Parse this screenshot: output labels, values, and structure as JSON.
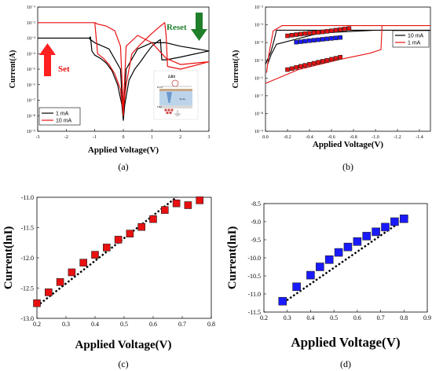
{
  "colors": {
    "black": "#000000",
    "red": "#e81010",
    "blue": "#1a1aff",
    "set_arrow": "#ff2020",
    "reset_arrow": "#1f7f2a"
  },
  "chart_data": [
    {
      "panel": "(a)",
      "type": "line",
      "xlabel": "Applied Voltage(V)",
      "ylabel": "Current(A)",
      "xlim": [
        -3,
        3
      ],
      "ylim": [
        1e-09,
        0.1
      ],
      "yscale": "log",
      "x_ticks": [
        "-3",
        "-2",
        "-1",
        "0",
        "1",
        "2",
        "3"
      ],
      "y_ticks": [
        "10⁻¹",
        "10⁻²",
        "10⁻³",
        "10⁻⁴",
        "10⁻⁵",
        "10⁻⁶",
        "10⁻⁷",
        "10⁻⁸",
        "10⁻⁹"
      ],
      "legend": "bottom-left",
      "annotations": {
        "set": "Set",
        "reset": "Reset"
      },
      "inset_labels": [
        "LRS",
        "Pt/Ti",
        "Ta₂O₅",
        "ITO"
      ],
      "series": [
        {
          "name": "1 mA",
          "color": "black",
          "x": [
            -3,
            -2,
            -1.2,
            -1.15,
            -1.1,
            -1,
            -0.8,
            -0.6,
            -0.4,
            -0.2,
            -0.05,
            0,
            0.05,
            0.2,
            0.4,
            0.6,
            0.8,
            1.0,
            1.2,
            1.3,
            1.35,
            1.5,
            2,
            3,
            2,
            1.5,
            1.0,
            0.5,
            0.1,
            0,
            -0.1,
            -0.5,
            -1.0,
            -1.15,
            -1.2,
            -2,
            -3
          ],
          "y": [
            0.001,
            0.001,
            0.001,
            0.0012,
            0.00015,
            8e-05,
            5e-05,
            2.5e-05,
            8e-06,
            1e-06,
            5e-08,
            5e-09,
            5e-08,
            2e-06,
            1e-05,
            3e-05,
            0.0001,
            0.0003,
            0.0006,
            0.0008,
            4e-05,
            4e-05,
            6e-05,
            0.00015,
            0.0003,
            0.0005,
            0.0005,
            0.0002,
            1e-05,
            5e-09,
            1e-05,
            0.0002,
            0.0005,
            0.0008,
            0.001,
            0.001,
            0.001
          ]
        },
        {
          "name": "10 mA",
          "color": "red",
          "x": [
            -3,
            -2,
            -1.0,
            -0.9,
            -0.7,
            -0.5,
            -0.3,
            -0.1,
            -0.02,
            0,
            0.02,
            0.1,
            0.3,
            0.6,
            1.0,
            1.3,
            1.45,
            1.5,
            1.55,
            2,
            3,
            2,
            1.5,
            1.0,
            0.5,
            0.1,
            0,
            -0.1,
            -0.3,
            -0.6,
            -0.9,
            -1.0,
            -2,
            -3
          ],
          "y": [
            0.01,
            0.01,
            0.01,
            0.0001,
            5e-05,
            2e-05,
            5e-06,
            5e-07,
            3e-08,
            1e-08,
            5e-08,
            1e-06,
            0.0001,
            0.0004,
            0.002,
            0.006,
            0.01,
            0.0015,
            1.5e-05,
            1e-05,
            3e-05,
            2e-05,
            5e-05,
            0.0005,
            0.0015,
            0.0003,
            3e-08,
            0.0003,
            0.003,
            0.006,
            0.008,
            0.01,
            0.01,
            0.01
          ]
        }
      ]
    },
    {
      "panel": "(b)",
      "type": "line",
      "xlabel": "Applied Voltage(V)",
      "ylabel": "Current(A)",
      "xlim": [
        0,
        -1.5
      ],
      "ylim": [
        1e-09,
        0.01
      ],
      "yscale": "log",
      "x_ticks": [
        "0.0",
        "-0.2",
        "-0.4",
        "-0.6",
        "-0.8",
        "-1.0",
        "-1.2",
        "-1.4"
      ],
      "y_ticks": [
        "10⁻²",
        "10⁻³",
        "10⁻⁴",
        "10⁻⁵",
        "10⁻⁶",
        "10⁻⁷",
        "10⁻⁸",
        "10⁻⁹"
      ],
      "legend": "top-right",
      "series": [
        {
          "name": "10 mA",
          "color": "black",
          "x": [
            0,
            -0.05,
            -0.08,
            -0.1,
            -0.5,
            -1.0,
            -1.5,
            -1.0,
            -0.5,
            -0.1,
            -0.05,
            -0.02
          ],
          "y": [
            6e-06,
            3e-05,
            0.00015,
            0.0005,
            0.0005,
            0.0005,
            0.0005,
            0.0005,
            0.00035,
            8e-05,
            2e-05,
            6e-06
          ]
        },
        {
          "name": "1   mA",
          "color": "red",
          "x": [
            0,
            -0.3,
            -0.7,
            -0.95,
            -1.05,
            -1.06,
            -1.2,
            -1.5,
            -1.2,
            -0.6,
            -0.15,
            -0.07,
            -0.03,
            -0.01
          ],
          "y": [
            5e-07,
            3e-06,
            1.2e-05,
            2.5e-05,
            4e-05,
            0.0009,
            0.0009,
            0.0009,
            0.0009,
            0.0009,
            0.0009,
            0.00045,
            2e-05,
            2e-06
          ]
        }
      ],
      "marker_series": [
        {
          "color": "red",
          "x": [
            -0.2,
            -0.24,
            -0.28,
            -0.32,
            -0.36,
            -0.4,
            -0.44,
            -0.48,
            -0.52,
            -0.56,
            -0.6,
            -0.64,
            -0.68,
            -0.72,
            -0.76
          ],
          "y": [
            0.00024,
            0.00026,
            0.00028,
            0.0003,
            0.00032,
            0.00034,
            0.00036,
            0.00038,
            0.0004,
            0.00043,
            0.00046,
            0.0005,
            0.00054,
            0.00058,
            0.00062
          ]
        },
        {
          "color": "blue",
          "x": [
            -0.28,
            -0.32,
            -0.36,
            -0.4,
            -0.44,
            -0.48,
            -0.52,
            -0.56,
            -0.6,
            -0.64,
            -0.68
          ],
          "y": [
            0.000105,
            0.000112,
            0.00012,
            0.000128,
            0.000136,
            0.000144,
            0.000153,
            0.000162,
            0.000172,
            0.000182,
            0.000193
          ]
        },
        {
          "color": "red",
          "x": [
            -0.2,
            -0.24,
            -0.28,
            -0.32,
            -0.36,
            -0.4,
            -0.44,
            -0.48,
            -0.52,
            -0.56,
            -0.6,
            -0.64,
            -0.68
          ],
          "y": [
            3e-06,
            3.4e-06,
            4e-06,
            4.6e-06,
            5.2e-06,
            6e-06,
            6.8e-06,
            7.8e-06,
            8.8e-06,
            1e-05,
            1.15e-05,
            1.3e-05,
            1.5e-05
          ]
        }
      ]
    },
    {
      "panel": "(c)",
      "type": "scatter",
      "xlabel": "Applied Voltage(V)",
      "ylabel": "Current(lnI)",
      "xlim": [
        0.2,
        0.8
      ],
      "ylim": [
        -13.0,
        -11.0
      ],
      "x_ticks": [
        "0.2",
        "0.3",
        "0.4",
        "0.5",
        "0.6",
        "0.7",
        "0.8"
      ],
      "y_ticks": [
        "-11.0",
        "-11.5",
        "-12.0",
        "-12.5",
        "-13.0"
      ],
      "marker_color": "red",
      "x": [
        0.2,
        0.24,
        0.28,
        0.32,
        0.36,
        0.4,
        0.44,
        0.48,
        0.52,
        0.56,
        0.6,
        0.64,
        0.68,
        0.72,
        0.76
      ],
      "y": [
        -12.75,
        -12.57,
        -12.4,
        -12.24,
        -12.08,
        -11.95,
        -11.83,
        -11.7,
        -11.6,
        -11.49,
        -11.36,
        -11.21,
        -11.1,
        -11.13,
        -11.05
      ],
      "fit": {
        "x": [
          0.2,
          0.68
        ],
        "y": [
          -12.8,
          -11.0
        ]
      }
    },
    {
      "panel": "(d)",
      "type": "scatter",
      "xlabel": "Applied Voltage(V)",
      "ylabel": "Current(lnI)",
      "xlim": [
        0.2,
        0.9
      ],
      "ylim": [
        -11.5,
        -8.5
      ],
      "x_ticks": [
        "0.2",
        "0.3",
        "0.4",
        "0.5",
        "0.6",
        "0.7",
        "0.8",
        "0.9"
      ],
      "y_ticks": [
        "-8.5",
        "-9.0",
        "-9.5",
        "-10.0",
        "-10.5",
        "-11.0",
        "-11.5"
      ],
      "marker_color": "blue",
      "x": [
        0.28,
        0.34,
        0.4,
        0.44,
        0.48,
        0.52,
        0.56,
        0.6,
        0.64,
        0.68,
        0.72,
        0.76,
        0.8
      ],
      "y": [
        -11.2,
        -10.8,
        -10.48,
        -10.25,
        -10.05,
        -9.85,
        -9.7,
        -9.55,
        -9.4,
        -9.28,
        -9.15,
        -9.0,
        -8.92
      ],
      "fit": {
        "x": [
          0.27,
          0.82
        ],
        "y": [
          -11.3,
          -8.85
        ]
      }
    }
  ],
  "captions": [
    "(a)",
    "(b)",
    "(c)",
    "(d)"
  ]
}
